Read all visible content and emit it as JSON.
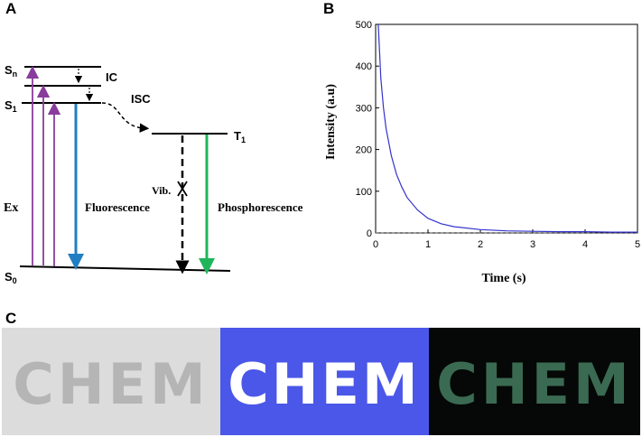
{
  "panels": {
    "a": {
      "letter": "A"
    },
    "b": {
      "letter": "B"
    },
    "c": {
      "letter": "C"
    }
  },
  "jablonski": {
    "s_n": {
      "main": "S",
      "sub": "n"
    },
    "s_1": {
      "main": "S",
      "sub": "1"
    },
    "s_0": {
      "main": "S",
      "sub": "0"
    },
    "t_1": {
      "main": "T",
      "sub": "1"
    },
    "ic": "IC",
    "isc": "ISC",
    "ex": "Ex",
    "vib": "Vib.",
    "fluorescence": "Fluorescence",
    "phosphorescence": "Phosphorescence",
    "colors": {
      "excitation": "#8a3c9c",
      "fluorescence": "#1f7fc2",
      "phosphorescence": "#1fb55a",
      "levels": "#000000"
    }
  },
  "chart_data": {
    "type": "line",
    "xlabel": "Time (s)",
    "ylabel": "Intensity (a.u)",
    "xlim": [
      0,
      5
    ],
    "ylim": [
      0,
      500
    ],
    "xticks": [
      "0",
      "1",
      "2",
      "3",
      "4",
      "5"
    ],
    "yticks": [
      "0",
      "100",
      "200",
      "300",
      "400",
      "500"
    ],
    "baseline": 0,
    "series": [
      {
        "color": "#3333cc",
        "x": [
          0.05,
          0.1,
          0.15,
          0.2,
          0.3,
          0.4,
          0.5,
          0.6,
          0.8,
          1.0,
          1.25,
          1.5,
          2.0,
          2.5,
          3.0,
          3.5,
          4.0,
          4.5,
          5.0
        ],
        "y": [
          500,
          370,
          300,
          250,
          185,
          140,
          110,
          85,
          55,
          35,
          22,
          15,
          8,
          5,
          4,
          3,
          3,
          2,
          2
        ]
      }
    ]
  },
  "photos": [
    {
      "word": "CHEM",
      "condition": "daylight",
      "bg": "#dcdcdc",
      "fg": "#b5b5b5"
    },
    {
      "word": "CHEM",
      "condition": "uv-on",
      "bg": "#4a57e8",
      "fg": "#ffffff"
    },
    {
      "word": "CHEM",
      "condition": "uv-off",
      "bg": "#050807",
      "fg": "#3b6a52"
    }
  ]
}
